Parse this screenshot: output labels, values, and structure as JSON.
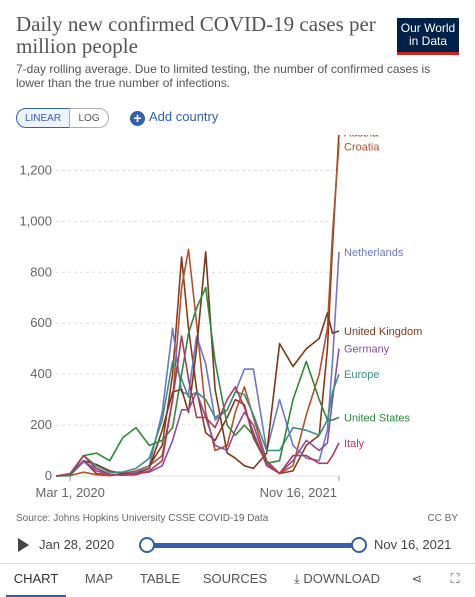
{
  "header": {
    "title": "Daily new confirmed COVID-19 cases per million people",
    "subtitle": "7-day rolling average. Due to limited testing, the number of confirmed cases is lower than the true number of infections.",
    "logo_line1": "Our World",
    "logo_line2": "in Data"
  },
  "controls": {
    "linear_label": "LINEAR",
    "log_label": "LOG",
    "add_country_label": "Add country",
    "add_icon": "+"
  },
  "footer": {
    "source": "Source: Johns Hopkins University CSSE COVID-19 Data",
    "license": "CC BY"
  },
  "timeline": {
    "start": "Jan 28, 2020",
    "end": "Nov 16, 2021"
  },
  "tabs": {
    "chart": "CHART",
    "map": "MAP",
    "table": "TABLE",
    "sources": "SOURCES",
    "download": "DOWNLOAD",
    "download_icon": "⤓",
    "share_icon": "⋖",
    "fullscreen_icon": "⛶"
  },
  "chart_data": {
    "type": "line",
    "title": "Daily new confirmed COVID-19 cases per million people",
    "xlabel": "",
    "ylabel": "",
    "ylim": [
      0,
      1300
    ],
    "yticks": [
      0,
      200,
      400,
      600,
      800,
      1000,
      1200
    ],
    "ytick_labels": [
      "0",
      "200",
      "400",
      "600",
      "800",
      "1,000",
      "1,200"
    ],
    "x_tick_labels": [
      "Mar 1, 2020",
      "Nov 16, 2021"
    ],
    "x_range": [
      "2020-01-28",
      "2021-11-16"
    ],
    "grid": true,
    "legend_placement": "right end labels",
    "x": [
      "2020-01-28",
      "2020-03-01",
      "2020-04-01",
      "2020-05-01",
      "2020-06-01",
      "2020-07-01",
      "2020-08-01",
      "2020-09-01",
      "2020-10-01",
      "2020-10-25",
      "2020-11-15",
      "2020-12-01",
      "2020-12-20",
      "2021-01-10",
      "2021-02-01",
      "2021-03-01",
      "2021-03-20",
      "2021-04-10",
      "2021-05-01",
      "2021-06-01",
      "2021-07-01",
      "2021-08-01",
      "2021-09-01",
      "2021-10-01",
      "2021-10-20",
      "2021-11-01",
      "2021-11-16"
    ],
    "series": [
      {
        "name": "Austria",
        "color": "#8b3a1e",
        "values": [
          0,
          5,
          60,
          10,
          3,
          10,
          15,
          40,
          120,
          400,
          860,
          580,
          340,
          170,
          140,
          230,
          300,
          280,
          150,
          50,
          10,
          20,
          120,
          160,
          500,
          900,
          1350
        ]
      },
      {
        "name": "Croatia",
        "color": "#b8502a",
        "values": [
          0,
          2,
          15,
          5,
          1,
          10,
          20,
          40,
          80,
          300,
          740,
          890,
          600,
          250,
          100,
          120,
          250,
          350,
          230,
          60,
          10,
          40,
          240,
          400,
          580,
          950,
          1310
        ]
      },
      {
        "name": "Netherlands",
        "color": "#6e78c8",
        "values": [
          0,
          3,
          55,
          30,
          8,
          5,
          15,
          40,
          250,
          580,
          330,
          320,
          550,
          440,
          220,
          260,
          330,
          420,
          420,
          100,
          300,
          120,
          70,
          60,
          180,
          450,
          880
        ]
      },
      {
        "name": "United Kingdom",
        "color": "#7a3a1a",
        "values": [
          0,
          5,
          60,
          45,
          20,
          10,
          10,
          30,
          180,
          330,
          340,
          250,
          500,
          880,
          340,
          90,
          70,
          40,
          30,
          90,
          520,
          430,
          500,
          540,
          640,
          560,
          570
        ]
      },
      {
        "name": "Germany",
        "color": "#8a4fa0",
        "values": [
          0,
          3,
          60,
          20,
          5,
          5,
          10,
          15,
          40,
          140,
          260,
          260,
          330,
          230,
          120,
          100,
          180,
          250,
          200,
          50,
          10,
          60,
          140,
          100,
          130,
          300,
          500
        ]
      },
      {
        "name": "Europe",
        "color": "#3a9080",
        "values": [
          0,
          5,
          80,
          40,
          15,
          15,
          30,
          70,
          220,
          450,
          380,
          310,
          330,
          300,
          230,
          260,
          330,
          320,
          240,
          100,
          100,
          190,
          180,
          160,
          220,
          330,
          400
        ]
      },
      {
        "name": "United States",
        "color": "#2e8a3e",
        "values": [
          0,
          1,
          80,
          90,
          60,
          150,
          190,
          120,
          140,
          190,
          400,
          560,
          660,
          740,
          450,
          200,
          160,
          200,
          160,
          50,
          60,
          300,
          450,
          300,
          220,
          220,
          230
        ]
      },
      {
        "name": "Italy",
        "color": "#b03a5a",
        "values": [
          0,
          10,
          80,
          30,
          5,
          3,
          5,
          20,
          60,
          300,
          550,
          380,
          230,
          230,
          190,
          300,
          350,
          270,
          170,
          40,
          10,
          80,
          80,
          50,
          50,
          80,
          130
        ]
      }
    ]
  }
}
